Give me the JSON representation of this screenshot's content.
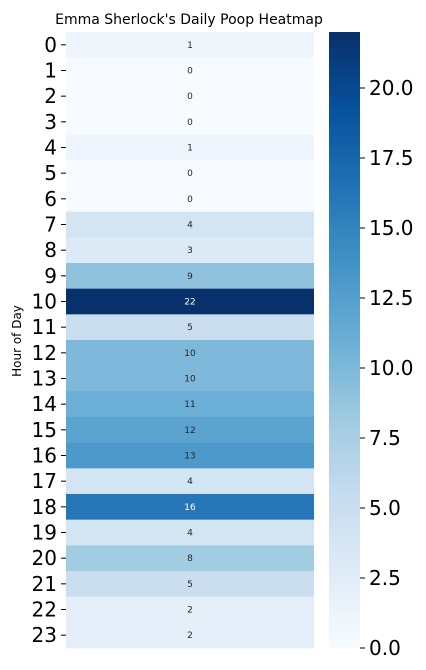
{
  "chart_data": {
    "type": "heatmap",
    "title": "Emma Sherlock's Daily Poop Heatmap",
    "ylabel": "Hour of Day",
    "xlabel": "",
    "rows": [
      "0",
      "1",
      "2",
      "3",
      "4",
      "5",
      "6",
      "7",
      "8",
      "9",
      "10",
      "11",
      "12",
      "13",
      "14",
      "15",
      "16",
      "17",
      "18",
      "19",
      "20",
      "21",
      "22",
      "23"
    ],
    "values": [
      1,
      0,
      0,
      0,
      1,
      0,
      0,
      4,
      3,
      9,
      22,
      5,
      10,
      10,
      11,
      12,
      13,
      4,
      16,
      4,
      8,
      5,
      2,
      2
    ],
    "colormap": "Blues",
    "vmin": 0,
    "vmax": 22,
    "colorbar": {
      "ticks": [
        "0.0",
        "2.5",
        "5.0",
        "7.5",
        "10.0",
        "12.5",
        "15.0",
        "17.5",
        "20.0"
      ],
      "tick_values": [
        0,
        2.5,
        5,
        7.5,
        10,
        12.5,
        15,
        17.5,
        20
      ]
    }
  }
}
